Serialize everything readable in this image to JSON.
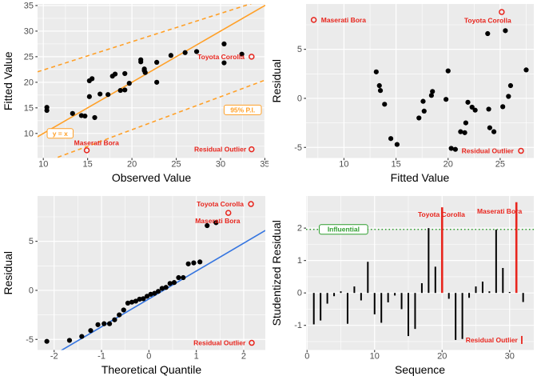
{
  "figure_title": "Regression diagnostic plots",
  "colors": {
    "panel": "#EBEBEB",
    "grid": "#FFFFFF",
    "point": "#000000",
    "orange": "#FFA028",
    "red": "#E8251D",
    "blue": "#3575E0",
    "green": "#2E9E2E",
    "tick_label": "#4D4D4D",
    "axis_title": "#000000",
    "tick_mark": "#333333"
  },
  "chart_data": [
    {
      "name": "fitted-vs-observed",
      "type": "scatter",
      "xlabel": "Observed Value",
      "ylabel": "Fitted Value",
      "xlim": [
        9.35,
        35.05
      ],
      "ylim": [
        5.2,
        35.3
      ],
      "xticks": [
        10,
        15,
        20,
        25,
        30,
        35
      ],
      "xminor": [
        12.5,
        17.5,
        22.5,
        27.5,
        32.5
      ],
      "yticks": [
        10,
        15,
        20,
        25,
        30,
        35
      ],
      "yminor": [
        7.5,
        12.5,
        17.5,
        22.5,
        27.5,
        32.5
      ],
      "points": [
        [
          10.4,
          14.5
        ],
        [
          10.4,
          15.1
        ],
        [
          13.3,
          13.9
        ],
        [
          14.3,
          13.5
        ],
        [
          14.7,
          13.4
        ],
        [
          15.2,
          17.2
        ],
        [
          15.2,
          20.3
        ],
        [
          15.5,
          20.7
        ],
        [
          15.8,
          13.1
        ],
        [
          16.4,
          17.7
        ],
        [
          17.3,
          17.6
        ],
        [
          17.8,
          21.2
        ],
        [
          18.1,
          21.6
        ],
        [
          18.7,
          18.4
        ],
        [
          19.2,
          18.5
        ],
        [
          19.2,
          21.7
        ],
        [
          19.7,
          19.8
        ],
        [
          21.0,
          24.0
        ],
        [
          21.0,
          24.4
        ],
        [
          21.4,
          22.3
        ],
        [
          21.4,
          22.6
        ],
        [
          21.5,
          21.9
        ],
        [
          22.8,
          20.0
        ],
        [
          22.8,
          23.9
        ],
        [
          24.4,
          25.25
        ],
        [
          26.0,
          25.8
        ],
        [
          27.3,
          26.0
        ],
        [
          30.4,
          23.8
        ],
        [
          30.4,
          27.5
        ],
        [
          32.4,
          25.5
        ]
      ],
      "ablines": [
        {
          "name": "identity-line",
          "a": 0,
          "b": 1,
          "color": "orange",
          "dash": ""
        },
        {
          "name": "pi-upper-line",
          "a": 16.87,
          "b": 0.553,
          "color": "orange",
          "dash": "5 4"
        },
        {
          "name": "pi-lower-line",
          "a": -2.17,
          "b": 0.645,
          "color": "orange",
          "dash": "5 4"
        }
      ],
      "outliers": [
        {
          "label": "Maserati Bora",
          "x": 14.9,
          "y": 6.7,
          "label_x": 16.0,
          "label_y": 8.2,
          "anchor": "middle"
        },
        {
          "label": "Toyota Corolla",
          "x": 33.5,
          "y": 25.0,
          "label_x": 32.7,
          "label_y": 25.0,
          "anchor": "end"
        }
      ],
      "boxed_labels": [
        {
          "text": "y = x",
          "x": 11.9,
          "y": 10.0,
          "color": "orange"
        },
        {
          "text": "95% P.I.",
          "x": 32.5,
          "y": 14.6,
          "color": "orange"
        }
      ],
      "corner_note": {
        "text": "Residual Outlier",
        "text_x": 32.9,
        "text_y": 6.9,
        "marker": "circle",
        "marker_x": 33.5,
        "marker_y": 6.9
      }
    },
    {
      "name": "residual-vs-fitted",
      "type": "scatter",
      "xlabel": "Fitted Value",
      "ylabel": "Residual",
      "xlim": [
        6.36,
        28.23
      ],
      "ylim": [
        -6.08,
        9.62
      ],
      "xticks": [
        10,
        15,
        20,
        25
      ],
      "xminor": [
        7.5,
        12.5,
        17.5,
        22.5,
        27.5
      ],
      "yticks": [
        -5,
        0,
        5
      ],
      "yminor": [
        -2.5,
        2.5,
        7.5
      ],
      "points": [
        [
          14.5,
          -4.1
        ],
        [
          15.1,
          -4.7
        ],
        [
          13.9,
          -0.6
        ],
        [
          13.5,
          0.8
        ],
        [
          13.4,
          1.3
        ],
        [
          17.2,
          -2.0
        ],
        [
          20.3,
          -5.1
        ],
        [
          20.7,
          -5.2
        ],
        [
          13.1,
          2.7
        ],
        [
          17.7,
          -1.3
        ],
        [
          17.6,
          -0.3
        ],
        [
          21.2,
          -3.4
        ],
        [
          21.6,
          -3.5
        ],
        [
          18.4,
          0.3
        ],
        [
          18.5,
          0.7
        ],
        [
          21.7,
          -2.5
        ],
        [
          19.8,
          -0.1
        ],
        [
          24.0,
          -3.0
        ],
        [
          24.4,
          -3.4
        ],
        [
          22.3,
          -0.9
        ],
        [
          22.6,
          -1.2
        ],
        [
          21.9,
          -0.4
        ],
        [
          20.0,
          2.8
        ],
        [
          23.9,
          -1.1
        ],
        [
          25.25,
          -0.85
        ],
        [
          25.8,
          0.2
        ],
        [
          26.0,
          1.3
        ],
        [
          23.8,
          6.6
        ],
        [
          27.5,
          2.9
        ],
        [
          25.5,
          6.9
        ]
      ],
      "ablines": [],
      "outliers": [
        {
          "label": "Maserati Bora",
          "x": 7.1,
          "y": 8.0,
          "label_x": 7.8,
          "label_y": 8.0,
          "anchor": "start"
        },
        {
          "label": "Toyota Corolla",
          "x": 25.15,
          "y": 8.8,
          "label_x": 23.8,
          "label_y": 7.95,
          "anchor": "middle"
        }
      ],
      "boxed_labels": [],
      "corner_note": {
        "text": "Residual Outlier",
        "text_x": 26.3,
        "text_y": -5.35,
        "marker": "circle",
        "marker_x": 27.0,
        "marker_y": -5.35
      }
    },
    {
      "name": "qq-plot",
      "type": "scatter",
      "xlabel": "Theoretical Quantile",
      "ylabel": "Residual",
      "xlim": [
        -2.35,
        2.456
      ],
      "ylim": [
        -6.08,
        9.62
      ],
      "xticks": [
        -2,
        -1,
        0,
        1,
        2
      ],
      "xminor": [
        -1.5,
        -0.5,
        0.5,
        1.5
      ],
      "yticks": [
        -5,
        0,
        5
      ],
      "yminor": [
        -2.5,
        2.5,
        7.5
      ],
      "points": [
        [
          -2.154,
          -5.2
        ],
        [
          -1.676,
          -5.1
        ],
        [
          -1.417,
          -4.7
        ],
        [
          -1.229,
          -4.1
        ],
        [
          -1.076,
          -3.5
        ],
        [
          -0.946,
          -3.4
        ],
        [
          -0.831,
          -3.4
        ],
        [
          -0.724,
          -3.0
        ],
        [
          -0.626,
          -2.5
        ],
        [
          -0.533,
          -2.0
        ],
        [
          -0.445,
          -1.3
        ],
        [
          -0.36,
          -1.2
        ],
        [
          -0.278,
          -1.1
        ],
        [
          -0.197,
          -0.9
        ],
        [
          -0.118,
          -0.85
        ],
        [
          -0.039,
          -0.6
        ],
        [
          0.039,
          -0.4
        ],
        [
          0.118,
          -0.3
        ],
        [
          0.197,
          -0.1
        ],
        [
          0.278,
          0.2
        ],
        [
          0.36,
          0.3
        ],
        [
          0.445,
          0.7
        ],
        [
          0.533,
          0.8
        ],
        [
          0.626,
          1.3
        ],
        [
          0.724,
          1.3
        ],
        [
          0.831,
          2.7
        ],
        [
          0.946,
          2.8
        ],
        [
          1.076,
          2.9
        ],
        [
          1.229,
          6.6
        ],
        [
          1.417,
          6.9
        ]
      ],
      "ablines": [
        {
          "name": "qq-line",
          "a": -0.87,
          "b": 2.84,
          "color": "blue",
          "dash": ""
        }
      ],
      "outliers": [
        {
          "label": "Maserati Bora",
          "x": 1.676,
          "y": 7.9,
          "label_x": 1.45,
          "label_y": 7.1,
          "anchor": "middle"
        },
        {
          "label": "Toyota Corolla",
          "x": 2.154,
          "y": 8.8,
          "label_x": 2.0,
          "label_y": 8.8,
          "anchor": "end"
        }
      ],
      "boxed_labels": [],
      "corner_note": {
        "text": "Residual Outlier",
        "text_x": 2.04,
        "text_y": -5.35,
        "marker": "circle",
        "marker_x": 2.17,
        "marker_y": -5.35
      }
    },
    {
      "name": "studentized-residual-vs-sequence",
      "type": "bar",
      "xlabel": "Sequence",
      "ylabel": "Studentized Residual",
      "xlim": [
        -0.15,
        33.58
      ],
      "ylim": [
        -1.76,
        2.99
      ],
      "xticks": [
        0,
        10,
        20,
        30
      ],
      "xminor": [
        5,
        15,
        25
      ],
      "yticks": [
        -1,
        0,
        1,
        2
      ],
      "yminor": [
        -1.5,
        -0.5,
        0.5,
        1.5,
        2.5
      ],
      "bars": {
        "values": [
          -0.97,
          -0.85,
          -0.33,
          -0.1,
          0.05,
          -0.95,
          0.2,
          -0.23,
          0.96,
          -0.66,
          -0.92,
          -0.29,
          -0.08,
          -0.5,
          -1.33,
          -1.11,
          0.3,
          2.0,
          0.81,
          2.64,
          -0.18,
          -1.45,
          -1.42,
          -0.15,
          0.2,
          0.35,
          0.05,
          1.95,
          0.77,
          0.03,
          2.8,
          -0.28
        ],
        "red_seq": [
          20,
          31
        ]
      },
      "hlines": [
        {
          "name": "influential-threshold-line",
          "y": 1.96,
          "color": "green",
          "dash": "1.5 3"
        }
      ],
      "text_labels": [
        {
          "text": "Toyota Corolla",
          "x": 19.9,
          "y": 2.42,
          "anchor": "middle"
        },
        {
          "text": "Maserati Bora",
          "x": 28.5,
          "y": 2.52,
          "anchor": "middle"
        }
      ],
      "boxed_labels": [
        {
          "text": "Influential",
          "x": 5.4,
          "y": 1.96,
          "color": "green"
        }
      ],
      "corner_note": {
        "text": "Residual Outlier",
        "text_x": 31.2,
        "text_y": -1.45,
        "marker": "bar",
        "marker_x": 31.8,
        "marker_y": -1.45
      }
    }
  ]
}
